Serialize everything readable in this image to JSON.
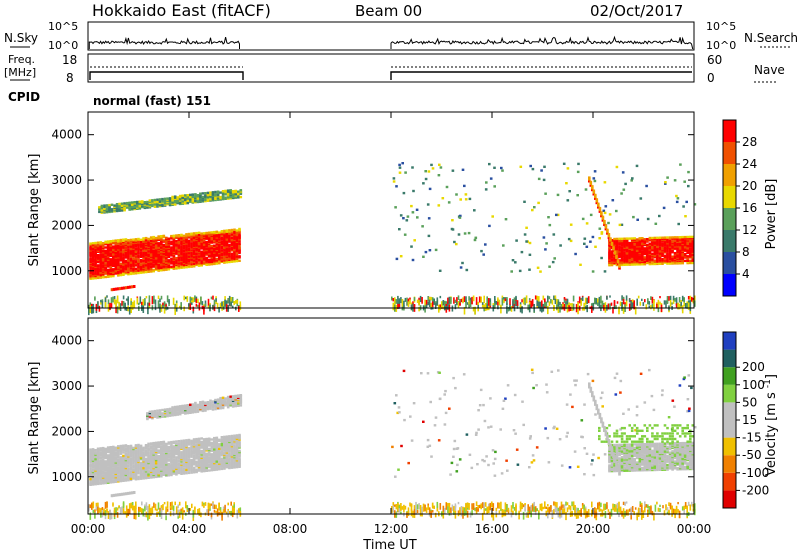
{
  "header": {
    "station": "Hokkaido East (fitACF)",
    "beam": "Beam 00",
    "date": "02/Oct/2017"
  },
  "summary_panels": {
    "nsky_label": "N.Sky",
    "nsearch_label": "N.Search",
    "noise_ticks": [
      "10^5",
      "10^0"
    ],
    "freq_label_1": "Freq.",
    "freq_label_2": "[MHz]",
    "freq_ticks": [
      "18",
      "8"
    ],
    "nave_label": "Nave",
    "nave_ticks": [
      "60",
      "0"
    ],
    "cpid_label": "CPID",
    "cpid_value": "normal (fast) 151"
  },
  "colors": {
    "power_scale": [
      "#0000ff",
      "#2a4fa0",
      "#3a7a6a",
      "#5aa05a",
      "#e8d800",
      "#f0a000",
      "#f05000",
      "#ff0000"
    ],
    "velocity_scale": [
      "#e00000",
      "#f04000",
      "#f08000",
      "#f0c000",
      "#c0c0c0",
      "#c0c0c0",
      "#80d040",
      "#40a020",
      "#206060",
      "#2040c0"
    ],
    "ground_scatter": "#c0c0c0"
  },
  "chart_data": [
    {
      "type": "heatmap",
      "name": "power-panel",
      "xlabel": "",
      "ylabel": "Slant Range [km]",
      "xlim": [
        0,
        24
      ],
      "ylim": [
        180,
        4500
      ],
      "yticks": [
        1000,
        2000,
        3000,
        4000
      ],
      "colorbar": {
        "label": "Power [dB]",
        "ticks": [
          4,
          8,
          12,
          16,
          20,
          24,
          28
        ]
      },
      "segments": [
        {
          "t_start": 0.0,
          "t_end": 6.0,
          "features": [
            {
              "desc": "strong band",
              "range_start": [
                850,
                1650
              ],
              "range_end": [
                1300,
                1950
              ],
              "power": 28
            },
            {
              "desc": "upper band",
              "range_start": [
                2300,
                2500
              ],
              "range_end": [
                2650,
                2850
              ],
              "power": 16
            }
          ]
        },
        {
          "t_start": 12.0,
          "t_end": 24.0,
          "features": [
            {
              "desc": "scattered echoes",
              "range": [
                1000,
                3400
              ],
              "power": 12
            },
            {
              "desc": "strong band",
              "t": [
                20.5,
                24.0
              ],
              "range": [
                1200,
                2000
              ],
              "power": 28
            }
          ]
        }
      ]
    },
    {
      "type": "heatmap",
      "name": "velocity-panel",
      "xlabel": "Time UT",
      "ylabel": "Slant Range [km]",
      "xlim": [
        0,
        24
      ],
      "ylim": [
        180,
        4500
      ],
      "yticks": [
        1000,
        2000,
        3000,
        4000
      ],
      "xticks": [
        "00:00",
        "04:00",
        "08:00",
        "12:00",
        "16:00",
        "20:00",
        "00:00"
      ],
      "colorbar": {
        "label": "Velocity [m s^-1]",
        "ticks": [
          -200,
          -100,
          -50,
          -15,
          15,
          50,
          100,
          200
        ]
      }
    }
  ]
}
